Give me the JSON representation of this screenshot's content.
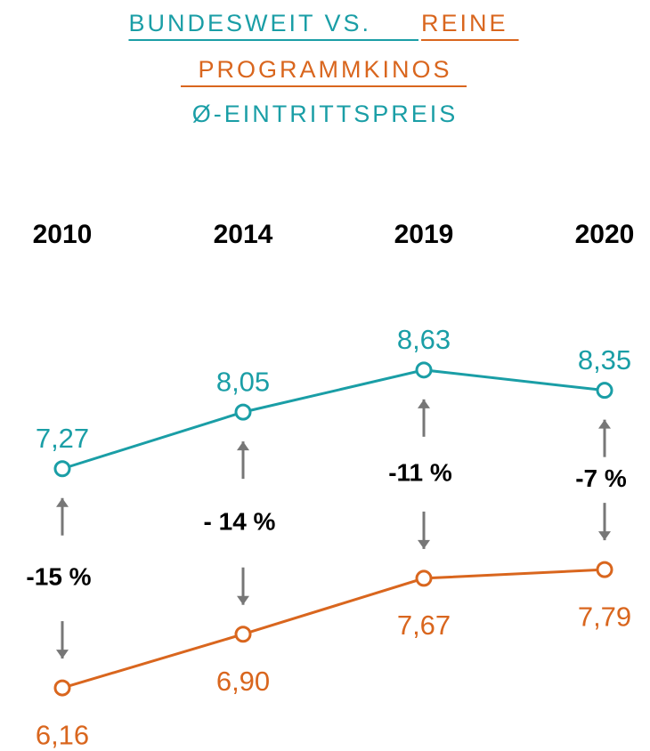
{
  "chart_data": {
    "type": "line",
    "title": [
      {
        "text": "BUNDESWEIT VS.",
        "color": "#1a9ea6"
      },
      {
        "text": "REINE",
        "color": "#d9661e"
      },
      {
        "text": "PROGRAMMKINOS",
        "color": "#d9661e"
      },
      {
        "text": "Ø-EINTRITTSPREIS",
        "color": "#1a9ea6"
      }
    ],
    "categories": [
      "2010",
      "2014",
      "2019",
      "2020"
    ],
    "series": [
      {
        "name": "Bundesweit",
        "color": "#1a9ea6",
        "values": [
          7.27,
          8.05,
          8.63,
          8.35
        ],
        "value_labels": [
          "7,27",
          "8,05",
          "8,63",
          "8,35"
        ]
      },
      {
        "name": "Reine Programmkinos",
        "color": "#d9661e",
        "axis": "y2",
        "values": [
          6.16,
          6.9,
          7.67,
          7.79
        ],
        "value_labels": [
          "6,16",
          "6,90",
          "7,67",
          "7,79"
        ]
      }
    ],
    "annotations": [
      "-15 %",
      "- 14 %",
      "-11 %",
      "-7 %"
    ],
    "ylim": [
      3.92,
      10.05
    ],
    "y2lim": [
      5.83,
      11.96
    ],
    "grid": false
  }
}
